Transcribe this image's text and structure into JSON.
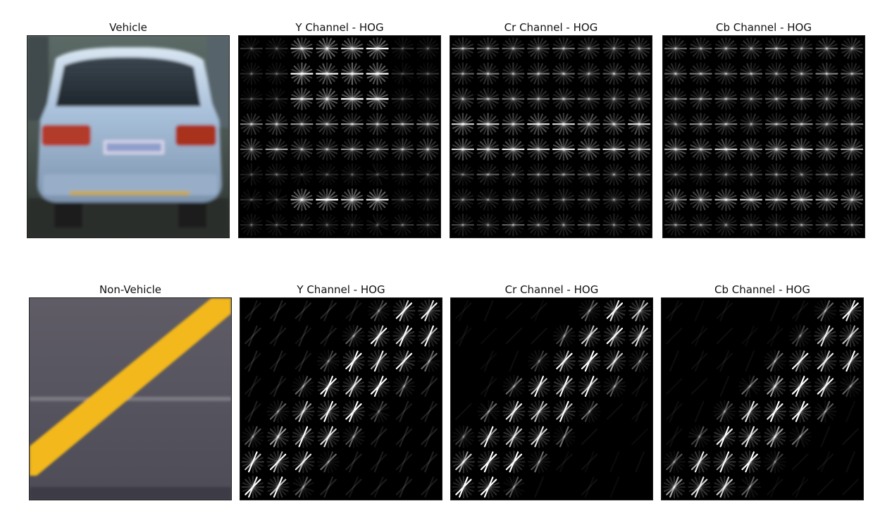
{
  "rows": [
    {
      "kind": "vehicle",
      "panels": [
        {
          "title": "Vehicle",
          "type": "photo",
          "subject": "car-rear"
        },
        {
          "title": "Y Channel - HOG",
          "type": "hog",
          "pattern": "vehicle-y"
        },
        {
          "title": "Cr Channel - HOG",
          "type": "hog",
          "pattern": "vehicle-cr"
        },
        {
          "title": "Cb Channel - HOG",
          "type": "hog",
          "pattern": "vehicle-cb"
        }
      ]
    },
    {
      "kind": "non-vehicle",
      "panels": [
        {
          "title": "Non-Vehicle",
          "type": "photo",
          "subject": "road-stripe"
        },
        {
          "title": "Y Channel - HOG",
          "type": "hog",
          "pattern": "diagonal-y"
        },
        {
          "title": "Cr Channel - HOG",
          "type": "hog",
          "pattern": "diagonal-cr"
        },
        {
          "title": "Cb Channel - HOG",
          "type": "hog",
          "pattern": "diagonal-cb"
        }
      ]
    }
  ],
  "colors": {
    "background": "#ffffff",
    "hog_background": "#000000",
    "hog_stroke": "#ffffff",
    "car_body": "#a9c1dc",
    "tail_light": "#b23a2a",
    "road": "#55555f",
    "stripe": "#f2b81e"
  }
}
